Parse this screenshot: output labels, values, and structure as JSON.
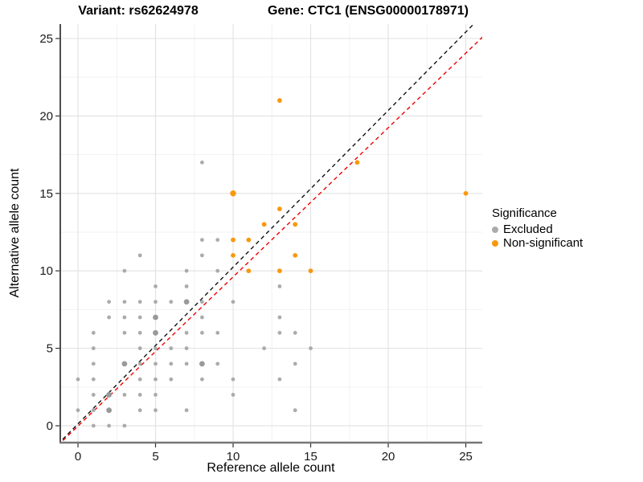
{
  "titles": {
    "left": "Variant: rs62624978",
    "right": "Gene: CTC1 (ENSG00000178971)"
  },
  "chart_data": {
    "type": "scatter",
    "xlabel": "Reference allele count",
    "ylabel": "Alternative allele count",
    "x_ticks": [
      0,
      5,
      10,
      15,
      20,
      25
    ],
    "y_ticks": [
      0,
      5,
      10,
      15,
      20,
      25
    ],
    "x_minor_ticks": [
      2.5,
      7.5,
      12.5,
      17.5,
      22.5
    ],
    "y_minor_ticks": [
      2.5,
      7.5,
      12.5,
      17.5,
      22.5
    ],
    "x_range": [
      -1.14,
      26.06
    ],
    "y_range": [
      -1.09,
      25.93
    ],
    "grid": "major and minor, light gray on white",
    "colors": {
      "excluded": "#ABABAB",
      "excluded_large": "#999999",
      "non_significant": "#F9980E",
      "identity_line": "#111111",
      "fit_line": "#EE0000",
      "major_grid": "#E4E4E4",
      "minor_grid": "#F2F2F2",
      "axis_left": "#222222",
      "axis_bottom": "#777777",
      "tick_text": "#1a1a1a"
    },
    "legend": {
      "title": "Significance",
      "position": "right",
      "entries": [
        {
          "label": "Excluded",
          "color": "#ABABAB"
        },
        {
          "label": "Non-significant",
          "color": "#F9980E"
        }
      ]
    },
    "series": [
      {
        "name": "Excluded",
        "color": "#ABABAB",
        "points": [
          [
            1,
            0
          ],
          [
            2,
            0
          ],
          [
            3,
            0
          ],
          [
            0,
            1
          ],
          [
            1,
            1
          ],
          [
            2,
            1,
            2
          ],
          [
            4,
            1
          ],
          [
            5,
            1
          ],
          [
            7,
            1
          ],
          [
            14,
            1
          ],
          [
            1,
            2
          ],
          [
            2,
            2,
            2
          ],
          [
            3,
            2
          ],
          [
            4,
            2
          ],
          [
            5,
            2
          ],
          [
            10,
            2
          ],
          [
            0,
            3
          ],
          [
            1,
            3
          ],
          [
            4,
            3
          ],
          [
            5,
            3
          ],
          [
            6,
            3
          ],
          [
            8,
            3
          ],
          [
            10,
            3
          ],
          [
            13,
            3
          ],
          [
            1,
            4
          ],
          [
            3,
            4,
            2
          ],
          [
            4,
            4
          ],
          [
            5,
            4
          ],
          [
            6,
            4
          ],
          [
            7,
            4
          ],
          [
            8,
            4,
            2
          ],
          [
            9,
            4
          ],
          [
            14,
            4
          ],
          [
            1,
            5
          ],
          [
            4,
            5
          ],
          [
            5,
            5
          ],
          [
            6,
            5
          ],
          [
            7,
            5
          ],
          [
            12,
            5
          ],
          [
            15,
            5
          ],
          [
            1,
            6
          ],
          [
            3,
            6
          ],
          [
            4,
            6
          ],
          [
            5,
            6,
            2
          ],
          [
            7,
            6
          ],
          [
            8,
            6
          ],
          [
            9,
            6
          ],
          [
            13,
            6
          ],
          [
            14,
            6
          ],
          [
            2,
            7
          ],
          [
            3,
            7
          ],
          [
            4,
            7
          ],
          [
            5,
            7,
            2
          ],
          [
            8,
            7
          ],
          [
            13,
            7
          ],
          [
            2,
            8
          ],
          [
            3,
            8
          ],
          [
            4,
            8
          ],
          [
            5,
            8
          ],
          [
            6,
            8
          ],
          [
            7,
            8,
            2
          ],
          [
            8,
            8
          ],
          [
            10,
            8
          ],
          [
            5,
            9
          ],
          [
            7,
            9
          ],
          [
            13,
            9
          ],
          [
            3,
            10
          ],
          [
            7,
            10
          ],
          [
            9,
            10
          ],
          [
            4,
            11
          ],
          [
            8,
            11
          ],
          [
            8,
            12
          ],
          [
            9,
            12
          ],
          [
            8,
            17
          ]
        ]
      },
      {
        "name": "Non-significant",
        "color": "#F9980E",
        "points": [
          [
            11,
            10
          ],
          [
            13,
            10
          ],
          [
            15,
            10
          ],
          [
            10,
            11
          ],
          [
            14,
            11
          ],
          [
            10,
            12
          ],
          [
            11,
            12
          ],
          [
            12,
            13
          ],
          [
            14,
            13
          ],
          [
            13,
            14
          ],
          [
            10,
            15,
            2
          ],
          [
            25,
            15
          ],
          [
            18,
            17
          ],
          [
            13,
            21
          ]
        ]
      }
    ],
    "lines": [
      {
        "name": "identity-line",
        "color": "#111111",
        "style": "dashed",
        "slope": 1.012,
        "intercept": 0.12
      },
      {
        "name": "fit-line",
        "color": "#EE0000",
        "style": "dashed",
        "slope": 0.963,
        "intercept": -0.02
      }
    ]
  }
}
